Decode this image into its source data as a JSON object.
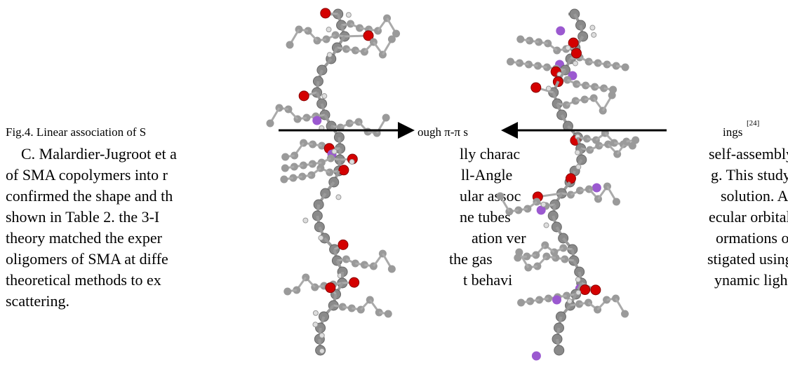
{
  "caption": {
    "fragments": [
      "Fig.4. Linear association of S",
      "ough π-π s",
      "ings"
    ],
    "reference": "[24]"
  },
  "paragraph": {
    "lines": [
      [
        "C. Malardier-Jugroot et a",
        "lly charac",
        "self-assembly"
      ],
      [
        "of SMA copolymers into r",
        "ll-Angle",
        "g. This study"
      ],
      [
        "confirmed the shape and th",
        "ular assoc",
        "solution. As"
      ],
      [
        "shown in Table 2. the 3-I",
        "ne tubes",
        "ecular orbital"
      ],
      [
        "theory matched the exper",
        "ation ver",
        "ormations of"
      ],
      [
        "oligomers of SMA at diffe",
        "the gas",
        "stigated using"
      ],
      [
        "theoretical methods to ex",
        "t behavi",
        "ynamic light"
      ],
      [
        "scattering."
      ]
    ]
  }
}
